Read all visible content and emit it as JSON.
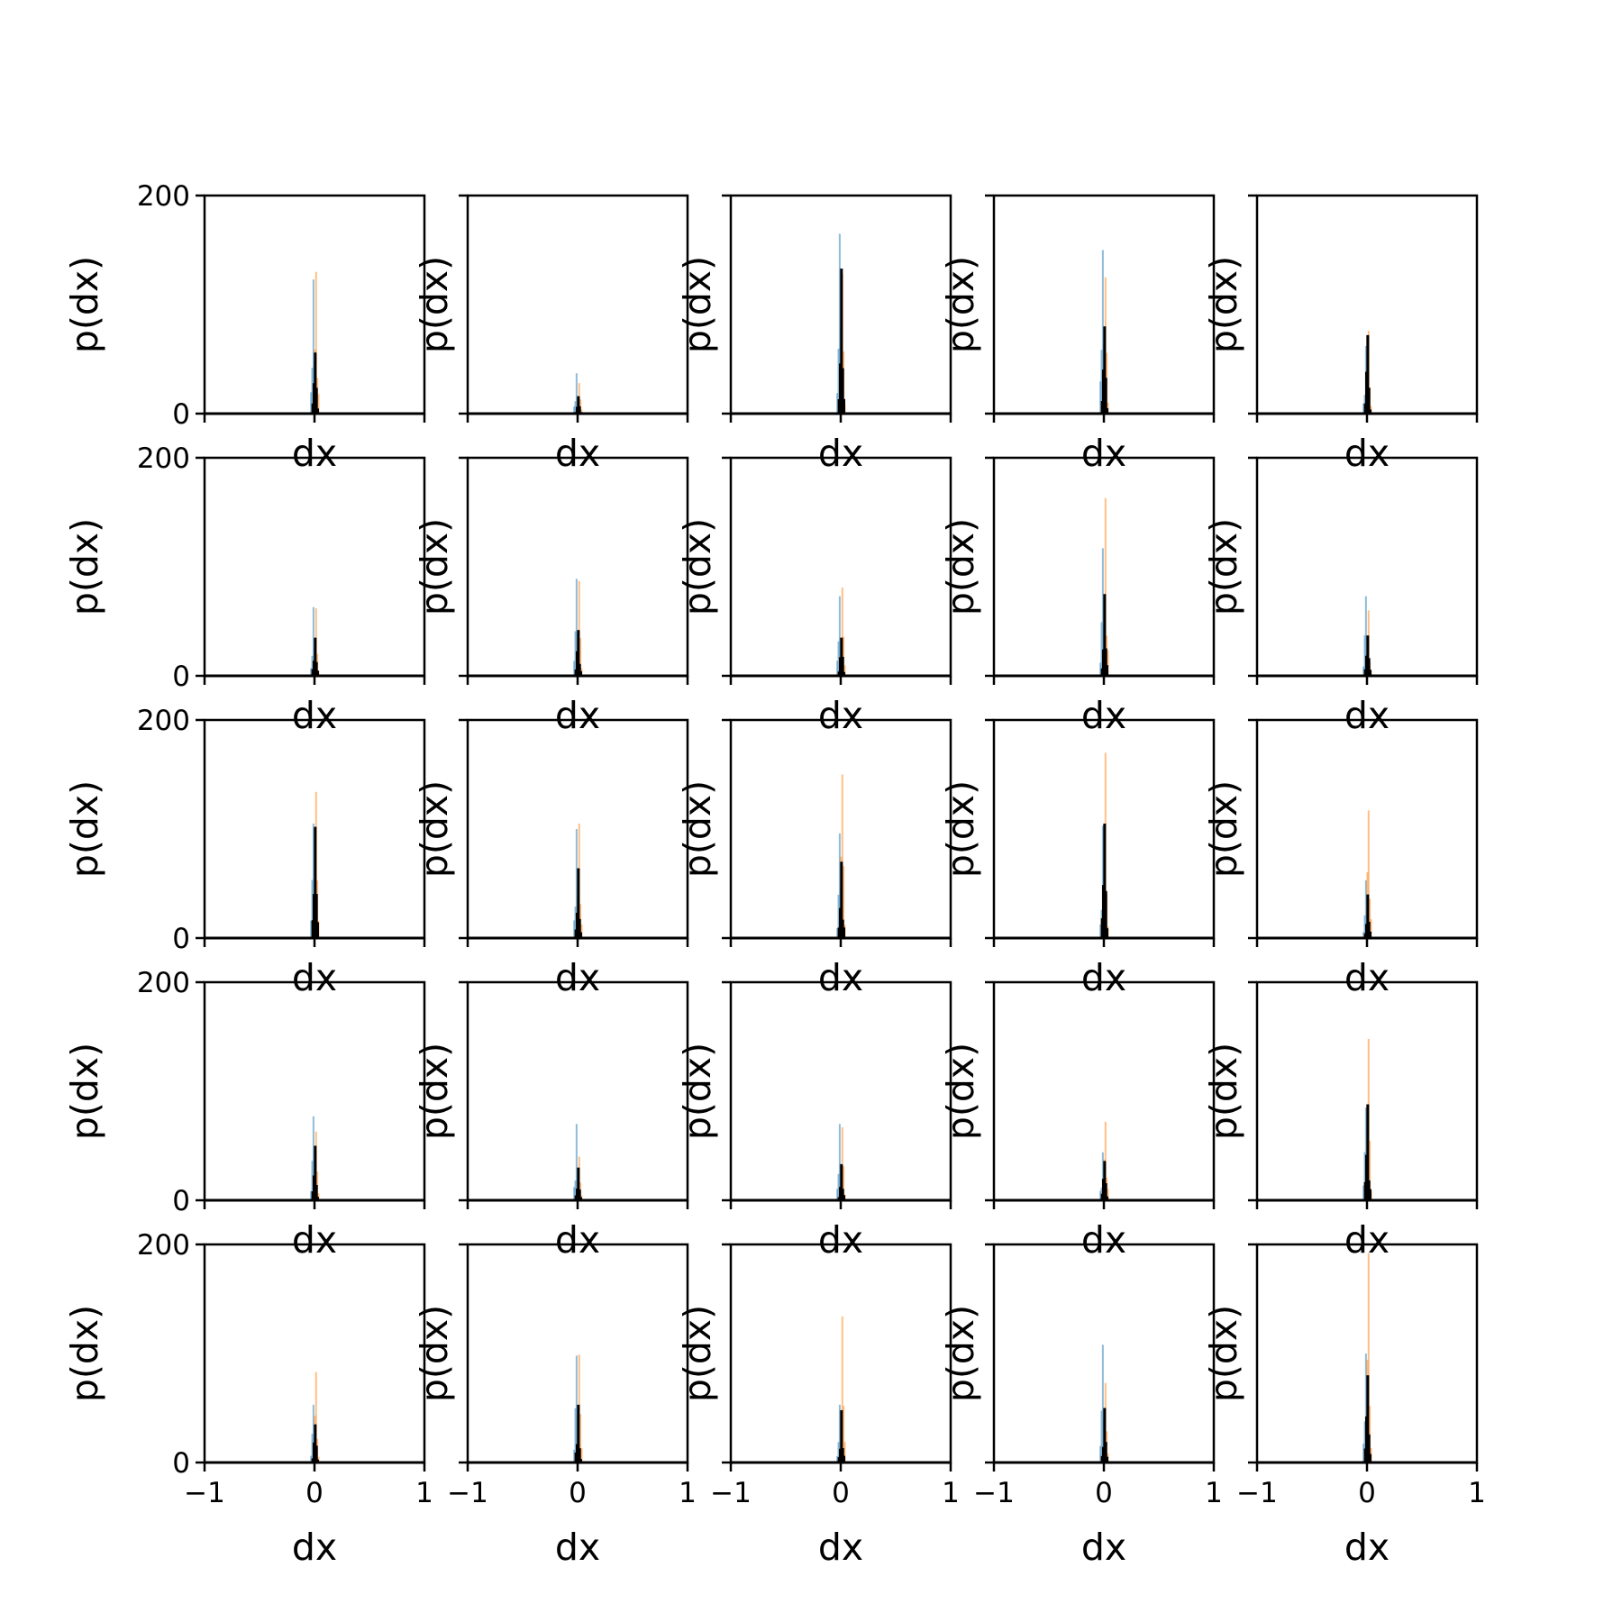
{
  "chart_data": {
    "type": "bar",
    "layout": {
      "rows": 5,
      "cols": 5
    },
    "xlabel": "dx",
    "ylabel": "p(dx)",
    "xlim": [
      -1,
      1
    ],
    "ylim": [
      0,
      200
    ],
    "xticks": [
      -1,
      0,
      1
    ],
    "xtick_labels": [
      "−1",
      "0",
      "1"
    ],
    "yticks": [
      0,
      200
    ],
    "ytick_labels": [
      "0",
      "200"
    ],
    "grid": false,
    "series": [
      {
        "color": "#1f77b4",
        "opacity": 0.5
      },
      {
        "color": "#ff7f0e",
        "opacity": 0.5
      },
      {
        "color": "#000000",
        "opacity": 1
      }
    ],
    "panels": [
      {
        "row": 0,
        "col": 0,
        "peaks": [
          123,
          130,
          56
        ]
      },
      {
        "row": 0,
        "col": 1,
        "peaks": [
          37,
          28,
          16
        ]
      },
      {
        "row": 0,
        "col": 2,
        "peaks": [
          165,
          128,
          133
        ]
      },
      {
        "row": 0,
        "col": 3,
        "peaks": [
          150,
          125,
          80
        ]
      },
      {
        "row": 0,
        "col": 4,
        "peaks": [
          62,
          76,
          72
        ]
      },
      {
        "row": 1,
        "col": 0,
        "peaks": [
          63,
          62,
          35
        ]
      },
      {
        "row": 1,
        "col": 1,
        "peaks": [
          89,
          87,
          42
        ]
      },
      {
        "row": 1,
        "col": 2,
        "peaks": [
          73,
          81,
          35
        ]
      },
      {
        "row": 1,
        "col": 3,
        "peaks": [
          117,
          163,
          75
        ]
      },
      {
        "row": 1,
        "col": 4,
        "peaks": [
          73,
          60,
          37
        ]
      },
      {
        "row": 2,
        "col": 0,
        "peaks": [
          105,
          134,
          102
        ]
      },
      {
        "row": 2,
        "col": 1,
        "peaks": [
          100,
          105,
          64
        ]
      },
      {
        "row": 2,
        "col": 2,
        "peaks": [
          96,
          150,
          70
        ]
      },
      {
        "row": 2,
        "col": 3,
        "peaks": [
          103,
          170,
          105
        ]
      },
      {
        "row": 2,
        "col": 4,
        "peaks": [
          53,
          117,
          40
        ]
      },
      {
        "row": 3,
        "col": 0,
        "peaks": [
          77,
          63,
          50
        ]
      },
      {
        "row": 3,
        "col": 1,
        "peaks": [
          70,
          40,
          30
        ]
      },
      {
        "row": 3,
        "col": 2,
        "peaks": [
          70,
          67,
          33
        ]
      },
      {
        "row": 3,
        "col": 3,
        "peaks": [
          44,
          72,
          36
        ]
      },
      {
        "row": 3,
        "col": 4,
        "peaks": [
          85,
          148,
          88
        ]
      },
      {
        "row": 4,
        "col": 0,
        "peaks": [
          53,
          83,
          35
        ]
      },
      {
        "row": 4,
        "col": 1,
        "peaks": [
          98,
          99,
          53
        ]
      },
      {
        "row": 4,
        "col": 2,
        "peaks": [
          53,
          134,
          48
        ]
      },
      {
        "row": 4,
        "col": 3,
        "peaks": [
          108,
          73,
          50
        ]
      },
      {
        "row": 4,
        "col": 4,
        "peaks": [
          100,
          192,
          80
        ]
      }
    ]
  }
}
